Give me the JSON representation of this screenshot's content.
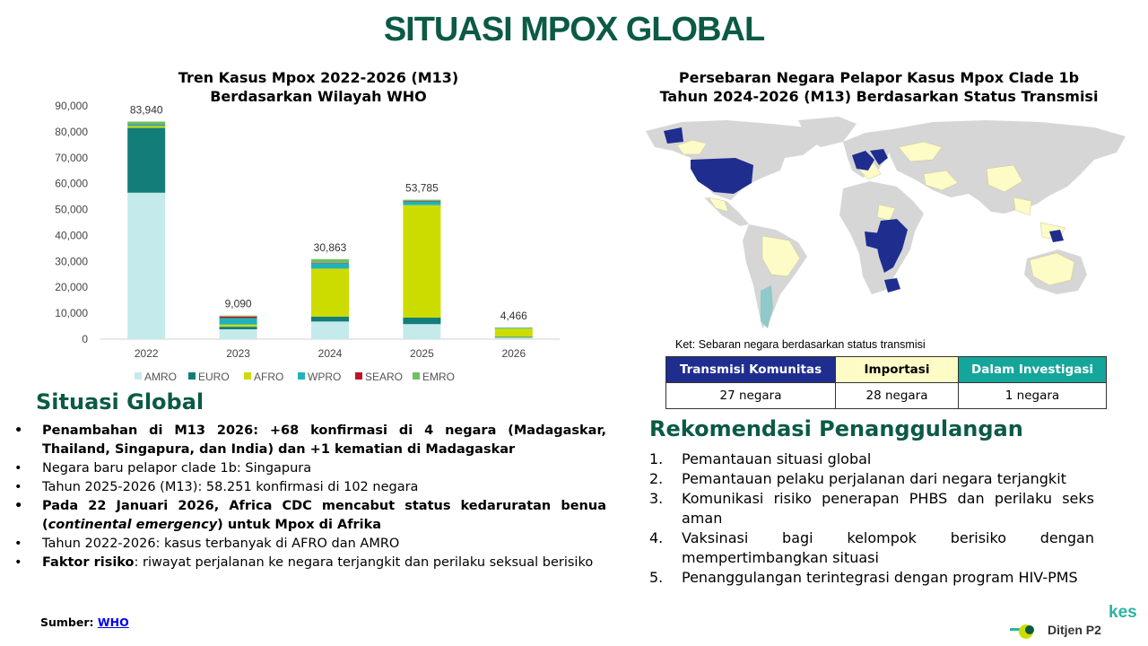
{
  "page_title": "SITUASI MPOX GLOBAL",
  "chart": {
    "title_line1": "Tren Kasus Mpox 2022-2026 (M13)",
    "title_line2": "Berdasarkan Wilayah WHO"
  },
  "chart_data": {
    "type": "bar",
    "stacked": true,
    "categories": [
      "2022",
      "2023",
      "2024",
      "2025",
      "2026"
    ],
    "series": [
      {
        "name": "AMRO",
        "color": "#c5eaeb",
        "values": [
          56500,
          3800,
          6800,
          5800,
          600
        ]
      },
      {
        "name": "EURO",
        "color": "#137d7a",
        "values": [
          25000,
          1000,
          1900,
          2500,
          300
        ]
      },
      {
        "name": "AFRO",
        "color": "#cddc00",
        "values": [
          700,
          800,
          18500,
          43400,
          3200
        ]
      },
      {
        "name": "WPRO",
        "color": "#22b2ba",
        "values": [
          600,
          2500,
          2100,
          1400,
          300
        ]
      },
      {
        "name": "SEARO",
        "color": "#c0142b",
        "values": [
          100,
          600,
          200,
          200,
          20
        ]
      },
      {
        "name": "EMRO",
        "color": "#6fbf63",
        "values": [
          1040,
          390,
          1363,
          485,
          46
        ]
      }
    ],
    "totals": [
      "83,940",
      "9,090",
      "30,863",
      "53,785",
      "4,466"
    ],
    "yticks": [
      "0",
      "10,000",
      "20,000",
      "30,000",
      "40,000",
      "50,000",
      "60,000",
      "70,000",
      "80,000",
      "90,000"
    ],
    "ylim": [
      0,
      90000
    ],
    "legend_position": "bottom"
  },
  "map": {
    "title_line1": "Persebaran Negara Pelapor Kasus Mpox Clade 1b",
    "title_line2": "Tahun 2024-2026 (M13) Berdasarkan Status Transmisi",
    "note": "Ket: Sebaran negara berdasarkan status transmisi",
    "colors": {
      "community": "#1f2d8f",
      "imported": "#fdfbc6",
      "investigation": "#8fc9c9",
      "none": "#d6d6d6"
    }
  },
  "status_table": {
    "headers": [
      "Transmisi Komunitas",
      "Importasi",
      "Dalam Investigasi"
    ],
    "values": [
      "27 negara",
      "28 negara",
      "1 negara"
    ],
    "header_colors": [
      "#1f2d8f",
      "#fdfbc6",
      "#14a69b"
    ]
  },
  "global": {
    "heading": "Situasi Global",
    "items": [
      {
        "text": "Penambahan di M13 2026: +68 konfirmasi di 4 negara (Madagaskar, Thailand, Singapura, dan India) dan +1 kematian di Madagaskar"
      },
      {
        "text": "Negara baru pelapor clade 1b: Singapura"
      },
      {
        "text": "Tahun 2025-2026 (M13): 58.251 konfirmasi di 102 negara"
      },
      {
        "a": "Pada 22 Januari 2026, Africa CDC mencabut status kedaruratan benua (",
        "b": "continental emergency",
        "c": ") untuk Mpox di Afrika"
      },
      {
        "text": "Tahun 2022-2026: kasus terbanyak di AFRO dan AMRO"
      },
      {
        "a": "Faktor risiko",
        "b": ": riwayat perjalanan ke negara terjangkit dan perilaku seksual berisiko"
      }
    ]
  },
  "recommendation": {
    "heading": "Rekomendasi Penanggulangan",
    "items": [
      {
        "num": "1.",
        "text": "Pemantauan situasi global"
      },
      {
        "num": "2.",
        "text": "Pemantauan pelaku perjalanan dari negara terjangkit"
      },
      {
        "num": "3.",
        "text": "Komunikasi risiko penerapan PHBS dan perilaku seks aman"
      },
      {
        "num": "4.",
        "text": "Vaksinasi bagi kelompok berisiko dengan mempertimbangkan situasi"
      },
      {
        "num": "5.",
        "text": "Penanggulangan terintegrasi dengan program HIV-PMS"
      }
    ]
  },
  "source": {
    "label": "Sumber: ",
    "link": "WHO"
  },
  "logo": {
    "kes": "kes",
    "ditjen": "Ditjen P2"
  }
}
